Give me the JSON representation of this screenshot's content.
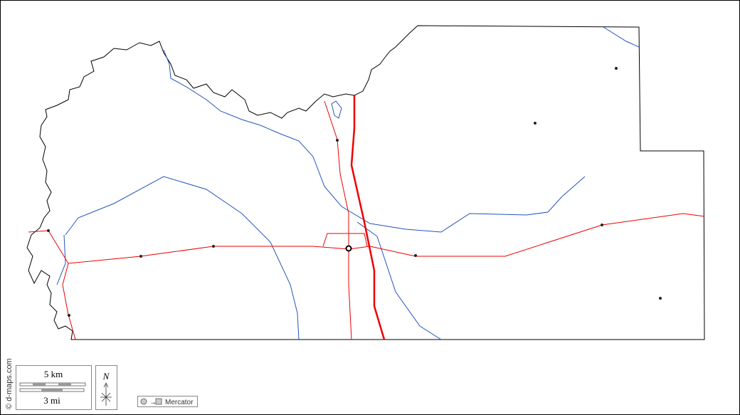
{
  "scale": {
    "km": "5 km",
    "mi": "3 mi"
  },
  "compass": {
    "north": "N"
  },
  "projection": "Mercator",
  "credit": "© d-maps.com"
}
